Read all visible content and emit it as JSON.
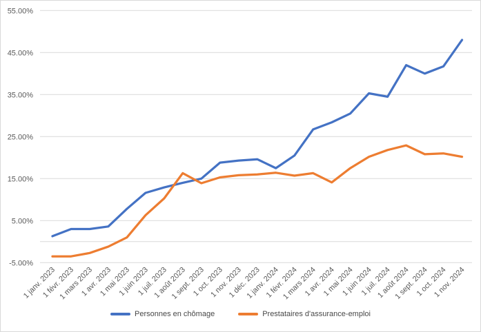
{
  "chart_data": {
    "type": "line",
    "title": "",
    "xlabel": "",
    "ylabel": "",
    "grid": "horizontal",
    "legend_position": "bottom",
    "ylim": [
      -5,
      55
    ],
    "ytick_step": 10,
    "ytick_labels": [
      "55.00%",
      "45.00%",
      "35.00%",
      "25.00%",
      "15.00%",
      "5.00%",
      "-5.00%"
    ],
    "ytick_values": [
      55,
      45,
      35,
      25,
      15,
      5,
      -5
    ],
    "axis_line_value": 0,
    "categories": [
      "1 janv. 2023",
      "1 févr. 2023",
      "1 mars 2023",
      "1 avr. 2023",
      "1 mai 2023",
      "1 juin 2023",
      "1 juil. 2023",
      "1 août 2023",
      "1 sept. 2023",
      "1 oct. 2023",
      "1 nov. 2023",
      "1 déc. 2023",
      "1 janv. 2024",
      "1 févr. 2024",
      "1 mars 2024",
      "1 avr. 2024",
      "1 mai 2024",
      "1 juin 2024",
      "1 juil. 2024",
      "1 août 2024",
      "1 sept. 2024",
      "1 oct. 2024",
      "1 nov. 2024"
    ],
    "series": [
      {
        "name": "Personnes en chômage",
        "color": "#4472C4",
        "values": [
          1.3,
          3.0,
          3.0,
          3.6,
          7.8,
          11.6,
          12.9,
          14.0,
          15.0,
          18.8,
          19.3,
          19.6,
          17.5,
          20.5,
          26.7,
          28.4,
          30.5,
          35.3,
          34.5,
          42.0,
          40.0,
          41.7,
          48.0
        ]
      },
      {
        "name": "Prestataires d'assurance-emploi",
        "color": "#ED7D31",
        "values": [
          -3.5,
          -3.5,
          -2.7,
          -1.2,
          1.0,
          6.3,
          10.3,
          16.3,
          13.9,
          15.3,
          15.8,
          16.0,
          16.4,
          15.7,
          16.3,
          14.1,
          17.5,
          20.2,
          21.8,
          22.9,
          20.8,
          21.0,
          20.2
        ]
      }
    ],
    "colors": {
      "gridline": "#d9d9d9",
      "axis_line": "#d9d9d9",
      "tick_label": "#595959",
      "legend_text": "#474747",
      "background": "#ffffff",
      "border": "#d9d9d9"
    }
  }
}
